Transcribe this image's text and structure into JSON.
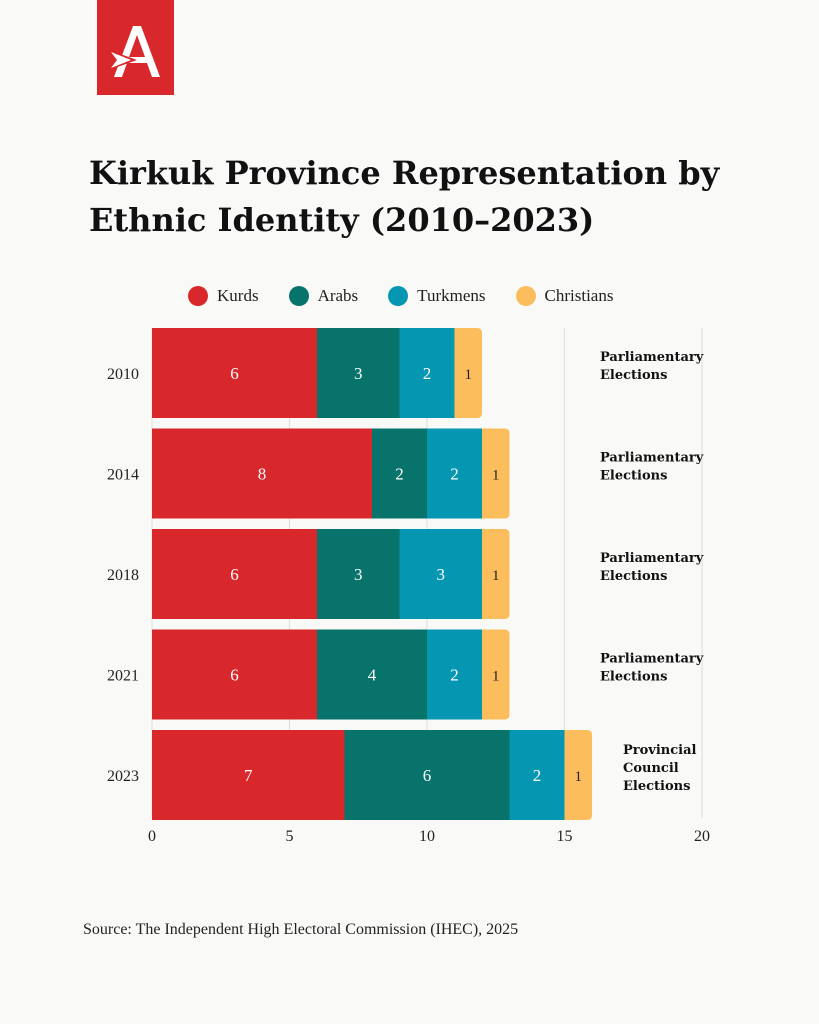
{
  "logo": {
    "letter": "A",
    "color": "#d9282b"
  },
  "title": "Kirkuk Province Representation by Ethnic Identity (2010–2023)",
  "source": "Source: The Independent High Electoral Commission (IHEC), 2025",
  "chart_data": {
    "type": "bar",
    "orientation": "horizontal",
    "stacked": true,
    "title": "Kirkuk Province Representation by Ethnic Identity (2010–2023)",
    "xlabel": "",
    "ylabel": "",
    "xlim": [
      0,
      20
    ],
    "x_ticks": [
      0,
      5,
      10,
      15,
      20
    ],
    "grid": true,
    "legend_position": "top",
    "categories": [
      "2010",
      "2014",
      "2018",
      "2021",
      "2023"
    ],
    "series": [
      {
        "name": "Kurds",
        "color": "#d9282b",
        "label_color": "#ffffff",
        "values": [
          6,
          8,
          6,
          6,
          7
        ]
      },
      {
        "name": "Arabs",
        "color": "#08736a",
        "label_color": "#ffffff",
        "values": [
          3,
          2,
          3,
          4,
          6
        ]
      },
      {
        "name": "Turkmens",
        "color": "#0596b2",
        "label_color": "#ffffff",
        "values": [
          2,
          2,
          3,
          2,
          2
        ]
      },
      {
        "name": "Christians",
        "color": "#fcbe5d",
        "label_color": "#222222",
        "values": [
          1,
          1,
          1,
          1,
          1
        ]
      }
    ],
    "annotations": [
      [
        "Parliamentary",
        "Elections"
      ],
      [
        "Parliamentary",
        "Elections"
      ],
      [
        "Parliamentary",
        "Elections"
      ],
      [
        "Parliamentary",
        "Elections"
      ],
      [
        "Provincial",
        "Council",
        "Elections"
      ]
    ]
  }
}
